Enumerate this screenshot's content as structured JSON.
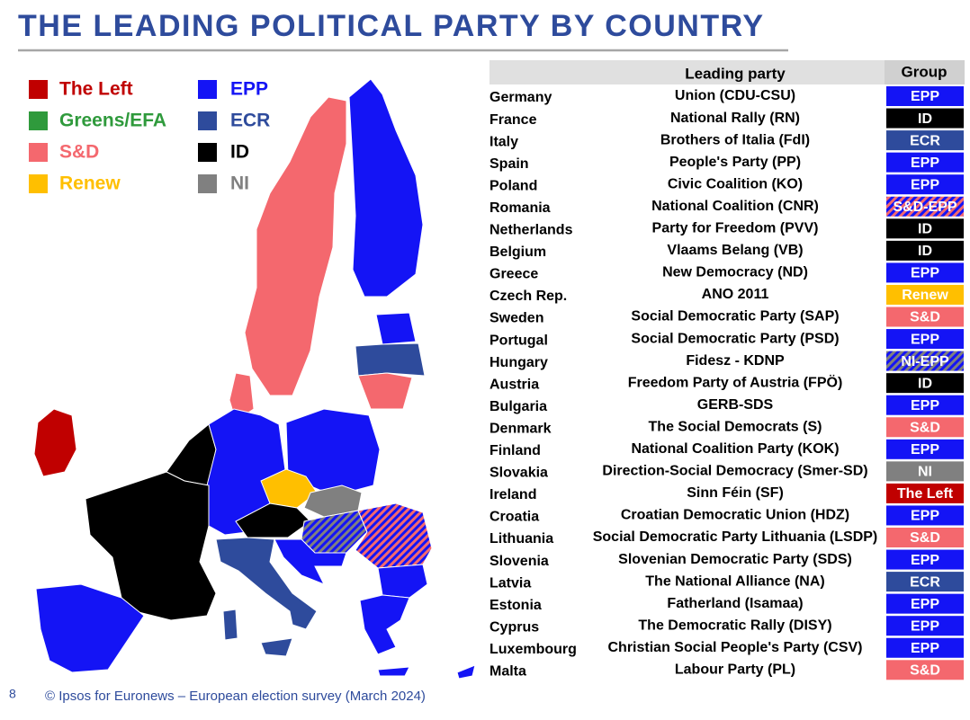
{
  "title": "THE LEADING POLITICAL PARTY BY COUNTRY",
  "legend": [
    {
      "label": "The Left",
      "color": "#c00000"
    },
    {
      "label": "Greens/EFA",
      "color": "#2f9a3c"
    },
    {
      "label": "S&D",
      "color": "#f4686e"
    },
    {
      "label": "Renew",
      "color": "#ffbf00"
    },
    {
      "label": "EPP",
      "color": "#1414f5"
    },
    {
      "label": "ECR",
      "color": "#2e4b9c"
    },
    {
      "label": "ID",
      "color": "#000000"
    },
    {
      "label": "NI",
      "color": "#808080"
    }
  ],
  "table": {
    "headers": [
      "Leading party",
      "Group"
    ],
    "rows": [
      [
        "Germany",
        "Union (CDU-CSU)",
        "EPP"
      ],
      [
        "France",
        "National Rally (RN)",
        "ID"
      ],
      [
        "Italy",
        "Brothers of Italia (FdI)",
        "ECR"
      ],
      [
        "Spain",
        "People's Party (PP)",
        "EPP"
      ],
      [
        "Poland",
        "Civic Coalition (KO)",
        "EPP"
      ],
      [
        "Romania",
        "National Coalition (CNR)",
        "S&D-EPP"
      ],
      [
        "Netherlands",
        "Party for Freedom (PVV)",
        "ID"
      ],
      [
        "Belgium",
        "Vlaams Belang (VB)",
        "ID"
      ],
      [
        "Greece",
        "New Democracy (ND)",
        "EPP"
      ],
      [
        "Czech Rep.",
        "ANO 2011",
        "Renew"
      ],
      [
        "Sweden",
        "Social Democratic Party (SAP)",
        "S&D"
      ],
      [
        "Portugal",
        "Social Democratic Party (PSD)",
        "EPP"
      ],
      [
        "Hungary",
        "Fidesz - KDNP",
        "NI-EPP"
      ],
      [
        "Austria",
        "Freedom Party of Austria (FPÖ)",
        "ID"
      ],
      [
        "Bulgaria",
        "GERB-SDS",
        "EPP"
      ],
      [
        "Denmark",
        "The Social Democrats (S)",
        "S&D"
      ],
      [
        "Finland",
        "National Coalition Party (KOK)",
        "EPP"
      ],
      [
        "Slovakia",
        "Direction-Social Democracy (Smer-SD)",
        "NI"
      ],
      [
        "Ireland",
        "Sinn Féin (SF)",
        "The Left"
      ],
      [
        "Croatia",
        "Croatian Democratic Union (HDZ)",
        "EPP"
      ],
      [
        "Lithuania",
        "Social Democratic Party Lithuania (LSDP)",
        "S&D"
      ],
      [
        "Slovenia",
        "Slovenian Democratic Party (SDS)",
        "EPP"
      ],
      [
        "Latvia",
        "The National Alliance (NA)",
        "ECR"
      ],
      [
        "Estonia",
        "Fatherland (Isamaa)",
        "EPP"
      ],
      [
        "Cyprus",
        "The Democratic Rally (DISY)",
        "EPP"
      ],
      [
        "Luxembourg",
        "Christian Social People's Party (CSV)",
        "EPP"
      ],
      [
        "Malta",
        "Labour Party (PL)",
        "S&D"
      ]
    ]
  },
  "footer": {
    "page": "8",
    "source": "© Ipsos for Euronews – European election survey (March 2024)"
  }
}
